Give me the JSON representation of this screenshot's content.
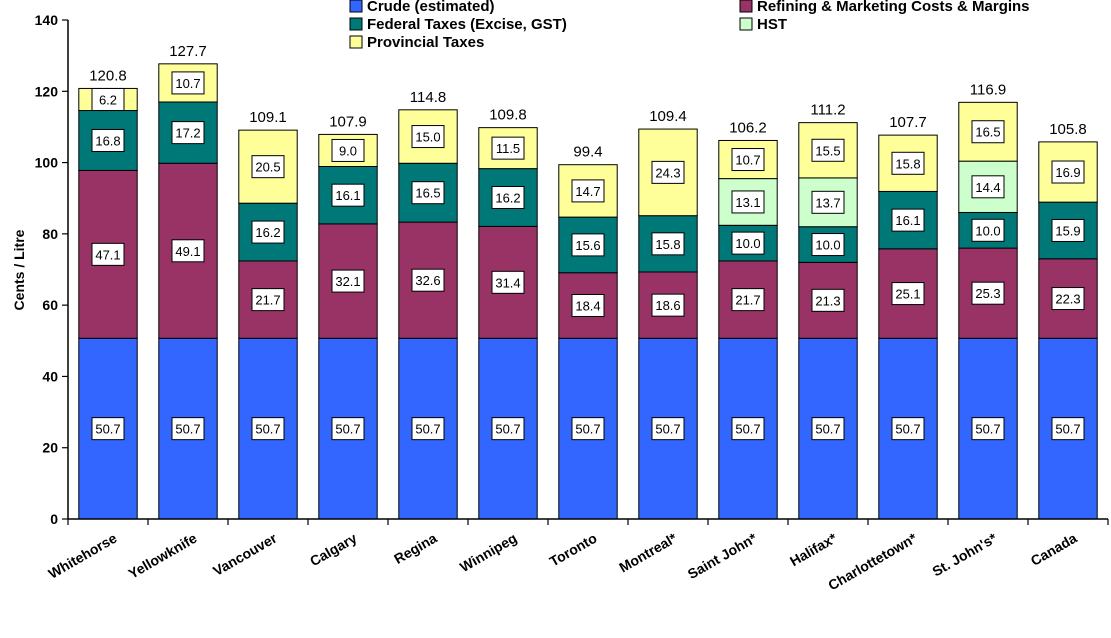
{
  "chart_data": {
    "type": "bar",
    "stacked": true,
    "title": "",
    "xlabel": "",
    "ylabel": "Cents / Litre",
    "ylim": [
      0,
      140
    ],
    "yticks": [
      0,
      20,
      40,
      60,
      80,
      100,
      120,
      140
    ],
    "grid": false,
    "legend_position": "top",
    "categories": [
      "Whitehorse",
      "Yellowknife",
      "Vancouver",
      "Calgary",
      "Regina",
      "Winnipeg",
      "Toronto",
      "Montreal*",
      "Saint John*",
      "Halifax*",
      "Charlottetown*",
      "St. John's*",
      "Canada"
    ],
    "series": [
      {
        "name": "Crude (estimated)",
        "color": "#3366FF",
        "values": [
          50.7,
          50.7,
          50.7,
          50.7,
          50.7,
          50.7,
          50.7,
          50.7,
          50.7,
          50.7,
          50.7,
          50.7,
          50.7
        ]
      },
      {
        "name": "Refining & Marketing Costs & Margins",
        "color": "#993366",
        "values": [
          47.1,
          49.1,
          21.7,
          32.1,
          32.6,
          31.4,
          18.4,
          18.6,
          21.7,
          21.3,
          25.1,
          25.3,
          22.3
        ]
      },
      {
        "name": "Federal Taxes (Excise, GST)",
        "color": "#007878",
        "values": [
          16.8,
          17.2,
          16.2,
          16.1,
          16.5,
          16.2,
          15.6,
          15.8,
          10.0,
          10.0,
          16.1,
          10.0,
          15.9
        ]
      },
      {
        "name": "HST",
        "color": "#CCFFCC",
        "values": [
          null,
          null,
          null,
          null,
          null,
          null,
          null,
          null,
          13.1,
          13.7,
          null,
          14.4,
          null
        ]
      },
      {
        "name": "Provincial Taxes",
        "color": "#FFFF99",
        "values": [
          6.2,
          10.7,
          20.5,
          9.0,
          15.0,
          11.5,
          14.7,
          24.3,
          10.7,
          15.5,
          15.8,
          16.5,
          16.9
        ]
      }
    ],
    "totals": [
      "120.8",
      "127.7",
      "109.1",
      "107.9",
      "114.8",
      "109.8",
      "99.4",
      "109.4",
      "106.2",
      "111.2",
      "107.7",
      "116.9",
      "105.8"
    ]
  }
}
